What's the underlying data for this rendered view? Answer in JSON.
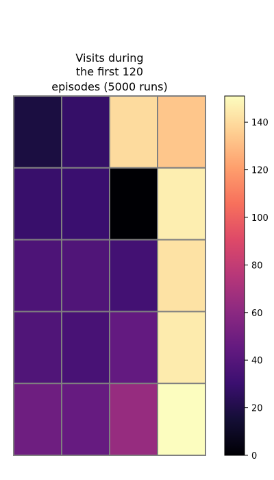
{
  "chart_data": {
    "type": "heatmap",
    "title_lines": [
      "Visits during",
      "the first 120",
      "episodes (5000 runs)"
    ],
    "rows": 5,
    "cols": 4,
    "values": [
      [
        18,
        28,
        140,
        133
      ],
      [
        29,
        30,
        0,
        146
      ],
      [
        37,
        38,
        33,
        142
      ],
      [
        38,
        35,
        45,
        145
      ],
      [
        49,
        46,
        64,
        151
      ]
    ],
    "colormap": "magma",
    "color_range": [
      0,
      151
    ],
    "colorbar": {
      "ticks": [
        0,
        20,
        40,
        60,
        80,
        100,
        120,
        140
      ],
      "tick_labels": [
        "0",
        "20",
        "40",
        "60",
        "80",
        "100",
        "120",
        "140"
      ]
    },
    "grid_line_color": "#808080",
    "axes_visible": false
  }
}
